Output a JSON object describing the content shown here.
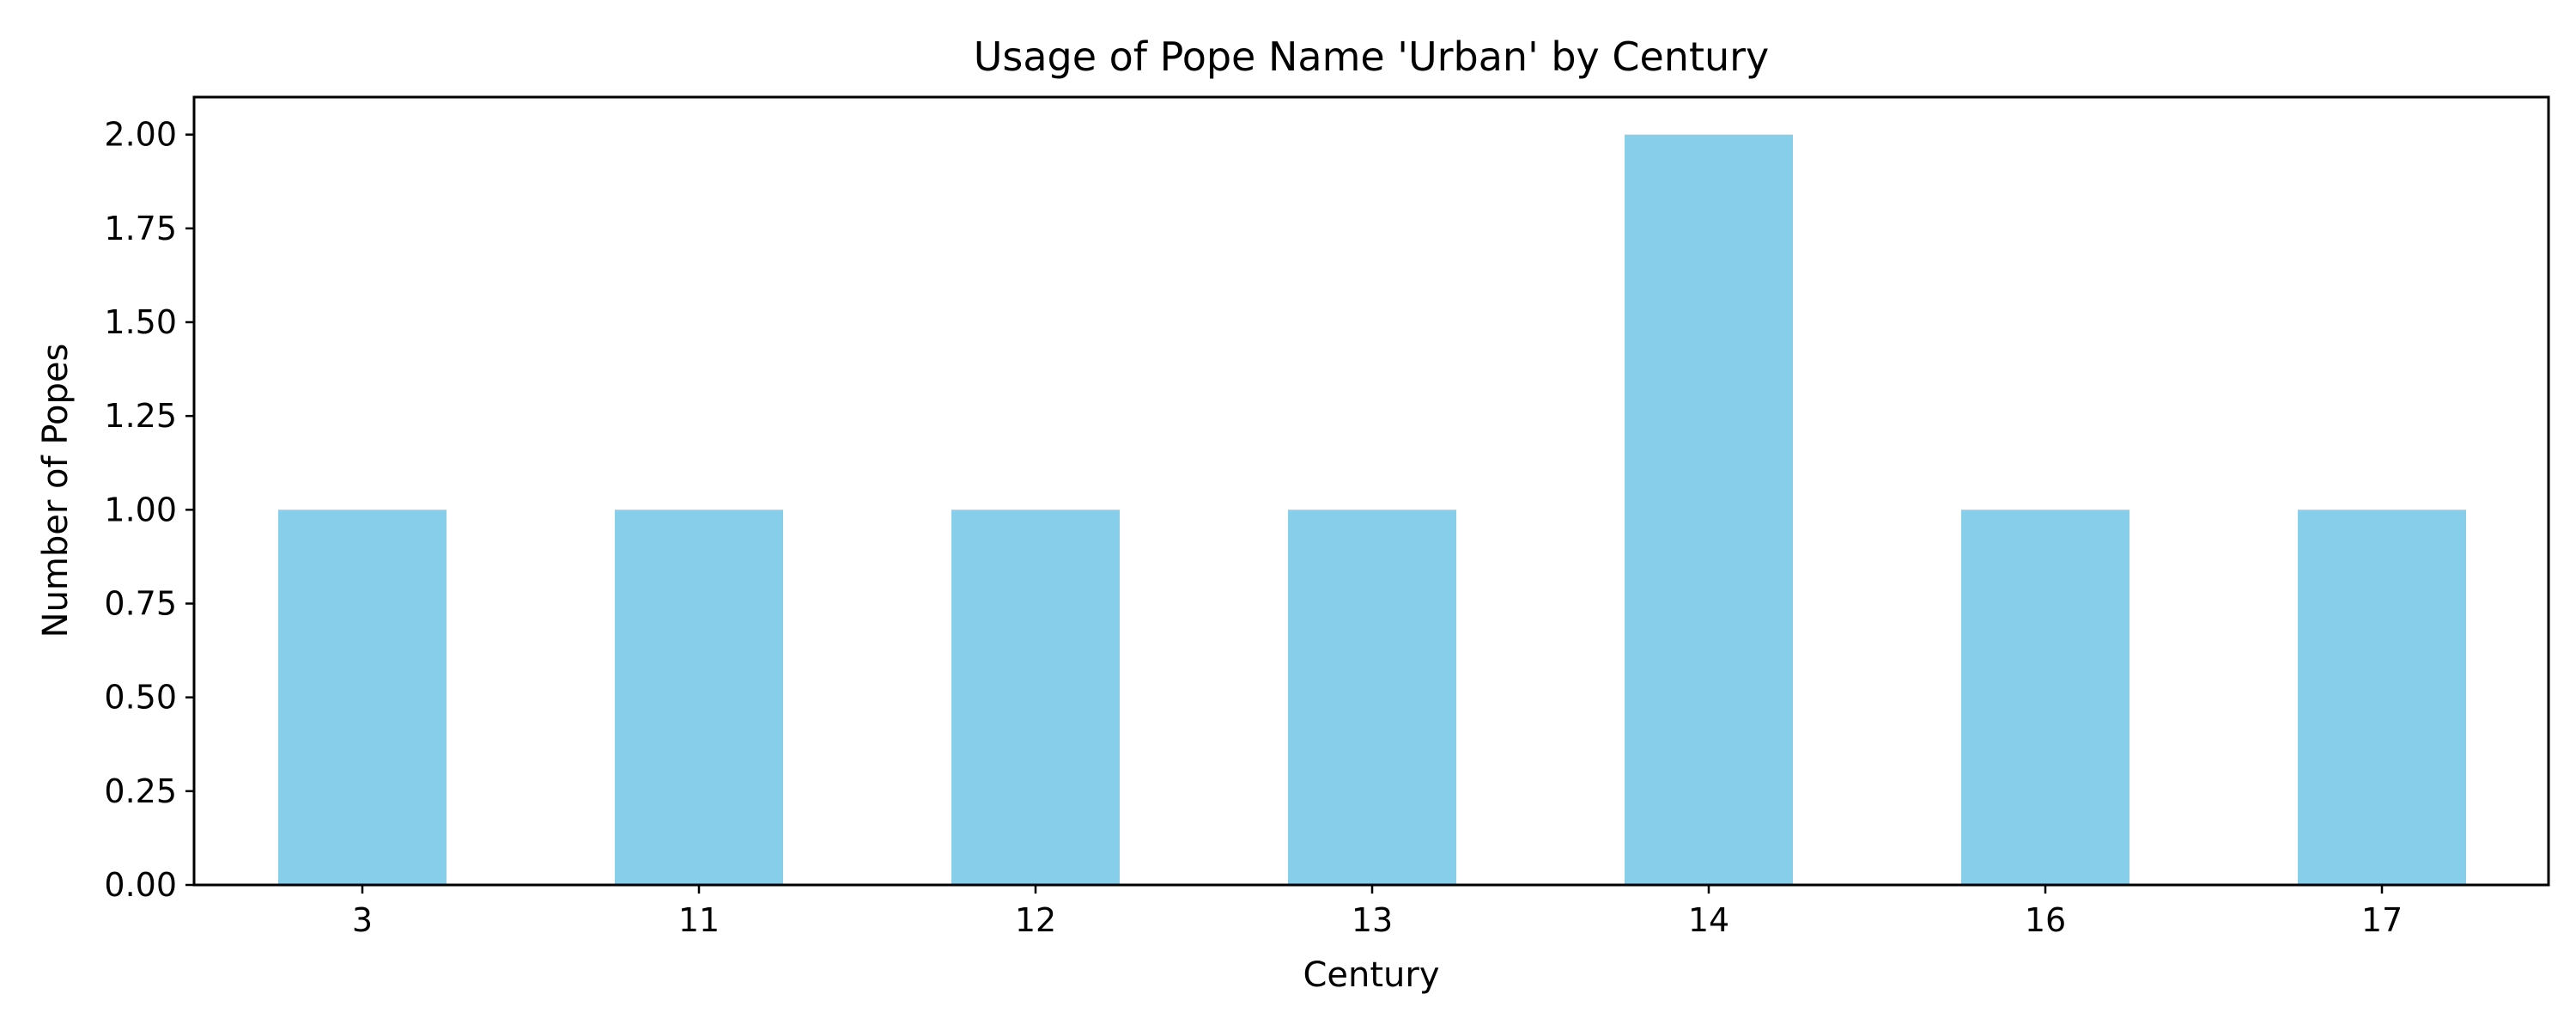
{
  "chart_data": {
    "type": "bar",
    "title": "Usage of Pope Name 'Urban' by Century",
    "xlabel": "Century",
    "ylabel": "Number of Popes",
    "categories": [
      "3",
      "11",
      "12",
      "13",
      "14",
      "16",
      "17"
    ],
    "values": [
      1,
      1,
      1,
      1,
      2,
      1,
      1
    ],
    "ylim": [
      0,
      2.1
    ],
    "yticks": [
      "0.00",
      "0.25",
      "0.50",
      "0.75",
      "1.00",
      "1.25",
      "1.50",
      "1.75",
      "2.00"
    ],
    "grid": false,
    "legend": "none",
    "bar_color": "#87CEEB",
    "axis_color": "#000000"
  }
}
